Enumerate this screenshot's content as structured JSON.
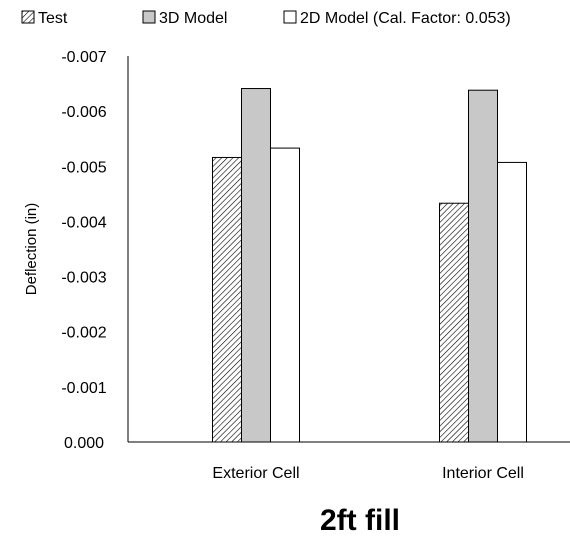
{
  "chart_data": {
    "type": "bar",
    "title": "2ft fill",
    "ylabel": "Deflection (in)",
    "xlabel": "",
    "categories": [
      "Exterior Cell",
      "Interior Cell"
    ],
    "series": [
      {
        "name": "Test",
        "values": [
          -0.00516,
          -0.00433
        ],
        "fill": "hatch"
      },
      {
        "name": "3D Model",
        "values": [
          -0.00641,
          -0.00638
        ],
        "fill": "#c8c8c8"
      },
      {
        "name": "2D Model (Cal. Factor: 0.053)",
        "values": [
          -0.00533,
          -0.00507
        ],
        "fill": "#ffffff"
      }
    ],
    "ylim": [
      0,
      -0.007
    ],
    "y_axis_reversed": true,
    "yticks": [
      "0.000",
      "-0.001",
      "-0.002",
      "-0.003",
      "-0.004",
      "-0.005",
      "-0.006",
      "-0.007"
    ],
    "grid": false,
    "legend_position": "top"
  }
}
